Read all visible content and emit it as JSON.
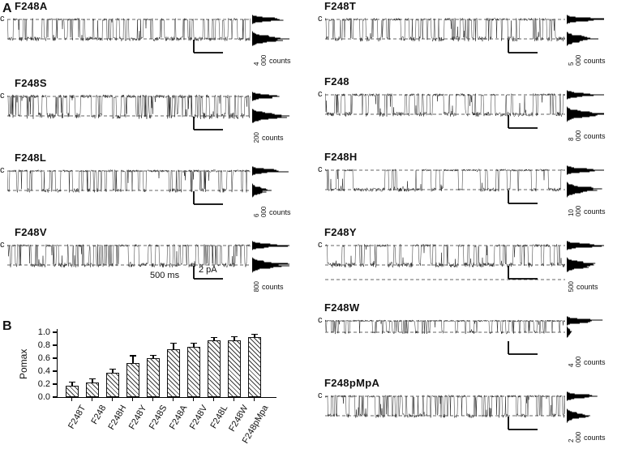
{
  "figure": {
    "panel_a_label": "A",
    "panel_b_label": "B"
  },
  "closed_label": "c",
  "counts_axis_label": "counts",
  "scale_bar": {
    "current": "2 pA",
    "time": "500 ms"
  },
  "left_panels": [
    {
      "label": "F248A",
      "counts_scale": "4 000",
      "po": 0.5,
      "dwell": 2,
      "noise": 1.0,
      "seed": 11,
      "levels": 2,
      "show_scale_labels": false
    },
    {
      "label": "F248S",
      "counts_scale": "200",
      "po": 0.55,
      "dwell": 1.2,
      "noise": 1.5,
      "seed": 22,
      "levels": 2,
      "show_scale_labels": false
    },
    {
      "label": "F248L",
      "counts_scale": "6 000",
      "po": 0.3,
      "dwell": 1.6,
      "noise": 1.0,
      "seed": 33,
      "levels": 2,
      "show_scale_labels": false
    },
    {
      "label": "F248V",
      "counts_scale": "800",
      "po": 0.55,
      "dwell": 1.4,
      "noise": 1.1,
      "seed": 44,
      "levels": 2,
      "show_scale_labels": true
    }
  ],
  "right_panels": [
    {
      "label": "F248T",
      "counts_scale": "5 000",
      "po": 0.45,
      "dwell": 1.6,
      "noise": 1.2,
      "seed": 55,
      "levels": 2,
      "show_scale_labels": false
    },
    {
      "label": "F248",
      "counts_scale": "8 000",
      "po": 0.5,
      "dwell": 2.5,
      "noise": 1.1,
      "seed": 66,
      "levels": 2,
      "show_scale_labels": false
    },
    {
      "label": "F248H",
      "counts_scale": "10 000",
      "po": 0.5,
      "dwell": 5,
      "noise": 0.9,
      "seed": 77,
      "levels": 2,
      "show_scale_labels": false
    },
    {
      "label": "F248Y",
      "counts_scale": "500",
      "po": 0.5,
      "dwell": 3,
      "noise": 1.2,
      "seed": 88,
      "levels": 3,
      "show_scale_labels": false
    },
    {
      "label": "F248W",
      "counts_scale": "4 000",
      "po": 0.1,
      "dwell": 1.5,
      "noise": 0.8,
      "seed": 99,
      "levels": 2,
      "amp": 14,
      "show_scale_labels": false
    },
    {
      "label": "F248pMpA",
      "counts_scale": "2 000",
      "po": 0.35,
      "dwell": 1.3,
      "noise": 1.0,
      "seed": 111,
      "levels": 2,
      "show_scale_labels": false
    }
  ],
  "chart_data": {
    "type": "bar",
    "title": "",
    "xlabel": "",
    "ylabel": "Pomax",
    "categories": [
      "F248T",
      "F248",
      "F248H",
      "F248Y",
      "F248S",
      "F248A",
      "F248V",
      "F248L",
      "F248W",
      "F248pMpa"
    ],
    "values": [
      0.18,
      0.22,
      0.38,
      0.53,
      0.6,
      0.74,
      0.77,
      0.88,
      0.88,
      0.93
    ],
    "errors": [
      0.04,
      0.05,
      0.04,
      0.1,
      0.04,
      0.08,
      0.05,
      0.03,
      0.04,
      0.03
    ],
    "ylim": [
      0,
      1.0
    ],
    "yticks": [
      0.0,
      0.2,
      0.4,
      0.6,
      0.8,
      1.0
    ],
    "bar_style": "hatched",
    "grid": false,
    "legend": null
  }
}
